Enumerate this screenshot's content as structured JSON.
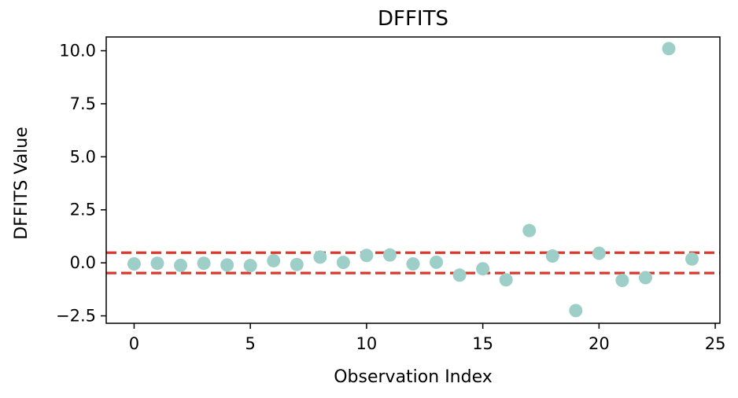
{
  "chart_data": {
    "type": "scatter",
    "title": "DFFITS",
    "xlabel": "Observation Index",
    "ylabel": "DFFITS Value",
    "xlim": [
      -1.2,
      25.2
    ],
    "ylim": [
      -2.85,
      10.65
    ],
    "xticks": [
      0,
      5,
      10,
      15,
      20,
      25
    ],
    "xtick_labels": [
      "0",
      "5",
      "10",
      "15",
      "20",
      "25"
    ],
    "yticks": [
      -2.5,
      0.0,
      2.5,
      5.0,
      7.5,
      10.0
    ],
    "ytick_labels": [
      "−2.5",
      "0.0",
      "2.5",
      "5.0",
      "7.5",
      "10.0"
    ],
    "grid": false,
    "series": [
      {
        "color": "#9dcfc8",
        "x": [
          0,
          1,
          2,
          3,
          4,
          5,
          6,
          7,
          8,
          9,
          10,
          11,
          12,
          13,
          14,
          15,
          16,
          17,
          18,
          19,
          20,
          21,
          22,
          23,
          24
        ],
        "y": [
          -0.05,
          -0.02,
          -0.12,
          -0.02,
          -0.1,
          -0.13,
          0.1,
          -0.08,
          0.27,
          0.02,
          0.35,
          0.37,
          -0.05,
          0.03,
          -0.58,
          -0.28,
          -0.8,
          1.52,
          0.32,
          -2.25,
          0.45,
          -0.83,
          -0.7,
          10.1,
          0.18
        ]
      }
    ],
    "threshold_lines": [
      {
        "y": 0.48,
        "color": "#d9392f",
        "style": "dashed"
      },
      {
        "y": -0.48,
        "color": "#d9392f",
        "style": "dashed"
      }
    ]
  }
}
